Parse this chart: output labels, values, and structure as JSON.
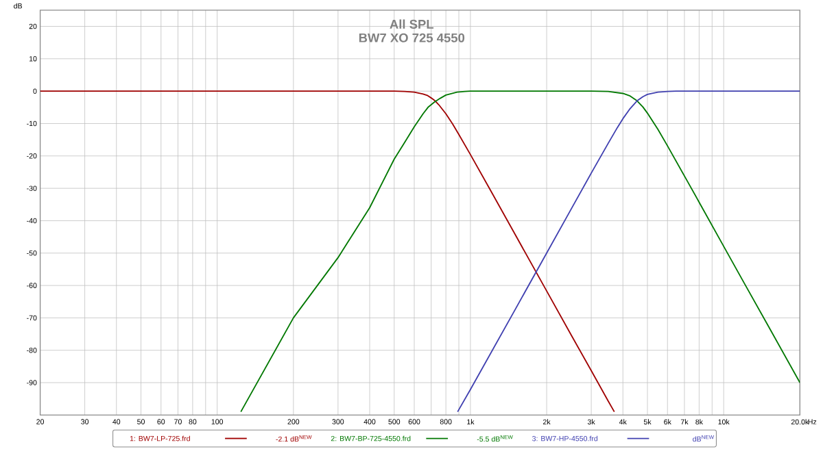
{
  "chart_data": {
    "type": "line",
    "title": "All SPL",
    "subtitle": "BW7 XO 725 4550",
    "ylabel": "dB",
    "log": "x",
    "grid": true,
    "legend": "bottom",
    "marker": "none",
    "line_style": "solid",
    "xlim": [
      20,
      20000
    ],
    "ylim": [
      -100,
      25
    ],
    "xticks": [
      20,
      30,
      40,
      50,
      60,
      70,
      80,
      {
        "value": 90,
        "label": null
      },
      100,
      200,
      300,
      400,
      500,
      600,
      {
        "value": 700,
        "label": null
      },
      800,
      {
        "value": 900,
        "label": null
      },
      {
        "value": 1000,
        "label": "1k"
      },
      {
        "value": 2000,
        "label": "2k"
      },
      {
        "value": 3000,
        "label": "3k"
      },
      {
        "value": 4000,
        "label": "4k"
      },
      {
        "value": 5000,
        "label": "5k"
      },
      {
        "value": 6000,
        "label": "6k"
      },
      {
        "value": 7000,
        "label": "7k"
      },
      {
        "value": 8000,
        "label": "8k"
      },
      {
        "value": 9000,
        "label": null
      },
      {
        "value": 10000,
        "label": "10k"
      },
      {
        "value": 20000,
        "label": "20.0k"
      }
    ],
    "xlabel": "Hz",
    "yticks": [
      20,
      10,
      0,
      -10,
      -20,
      -30,
      -40,
      -50,
      -60,
      -70,
      -80,
      -90
    ],
    "series": [
      {
        "name": "1: BW7-LP-725.frd",
        "color": "#a00000",
        "x": [
          20,
          100,
          300,
          400,
          500,
          550,
          600,
          650,
          675,
          700,
          725,
          750,
          800,
          850,
          900,
          1000,
          1200,
          1500,
          2000,
          2500,
          3000,
          3500,
          3700
        ],
        "values": [
          0,
          0,
          0,
          0,
          0,
          -0.1,
          -0.3,
          -0.9,
          -1.3,
          -2.1,
          -3,
          -4.2,
          -7,
          -10.1,
          -13.4,
          -19.6,
          -30.6,
          -44.2,
          -61.7,
          -75.3,
          -86.3,
          -95.7,
          -99
        ]
      },
      {
        "name": "2: BW7-BP-725-4550.frd",
        "color": "#007800",
        "x": [
          124,
          200,
          300,
          400,
          500,
          550,
          600,
          650,
          680,
          720,
          760,
          800,
          885,
          950,
          1000,
          2000,
          3000,
          3500,
          4000,
          4250,
          4550,
          4800,
          5000,
          5500,
          6000,
          7000,
          8000,
          10000,
          12000,
          15000,
          20000
        ],
        "values": [
          -99,
          -70,
          -51.4,
          -36,
          -21,
          -15.8,
          -11,
          -7,
          -5,
          -3.4,
          -2.2,
          -1.2,
          -0.3,
          -0.1,
          0,
          0,
          0,
          -0.1,
          -0.7,
          -1.4,
          -3,
          -4.9,
          -6.8,
          -11.8,
          -16.9,
          -26.2,
          -34.3,
          -47.9,
          -59,
          -72.5,
          -90
        ]
      },
      {
        "name": "3: BW7-HP-4550.frd",
        "color": "#4040b0",
        "x": [
          890,
          1000,
          1500,
          2000,
          2500,
          3000,
          3500,
          3800,
          4000,
          4250,
          4550,
          4800,
          5000,
          5500,
          6000,
          6500,
          10000,
          20000
        ],
        "values": [
          -99,
          -92.1,
          -67.5,
          -50,
          -36.4,
          -25.3,
          -16.1,
          -11.3,
          -8.5,
          -5.6,
          -3,
          -1.7,
          -1,
          -0.3,
          -0.1,
          0,
          0,
          0
        ]
      }
    ],
    "annotations": [
      "-2.1 dB$^{NEW}$",
      "-5.5 dB$^{NEW}$",
      "dB$^{NEW}$"
    ]
  }
}
